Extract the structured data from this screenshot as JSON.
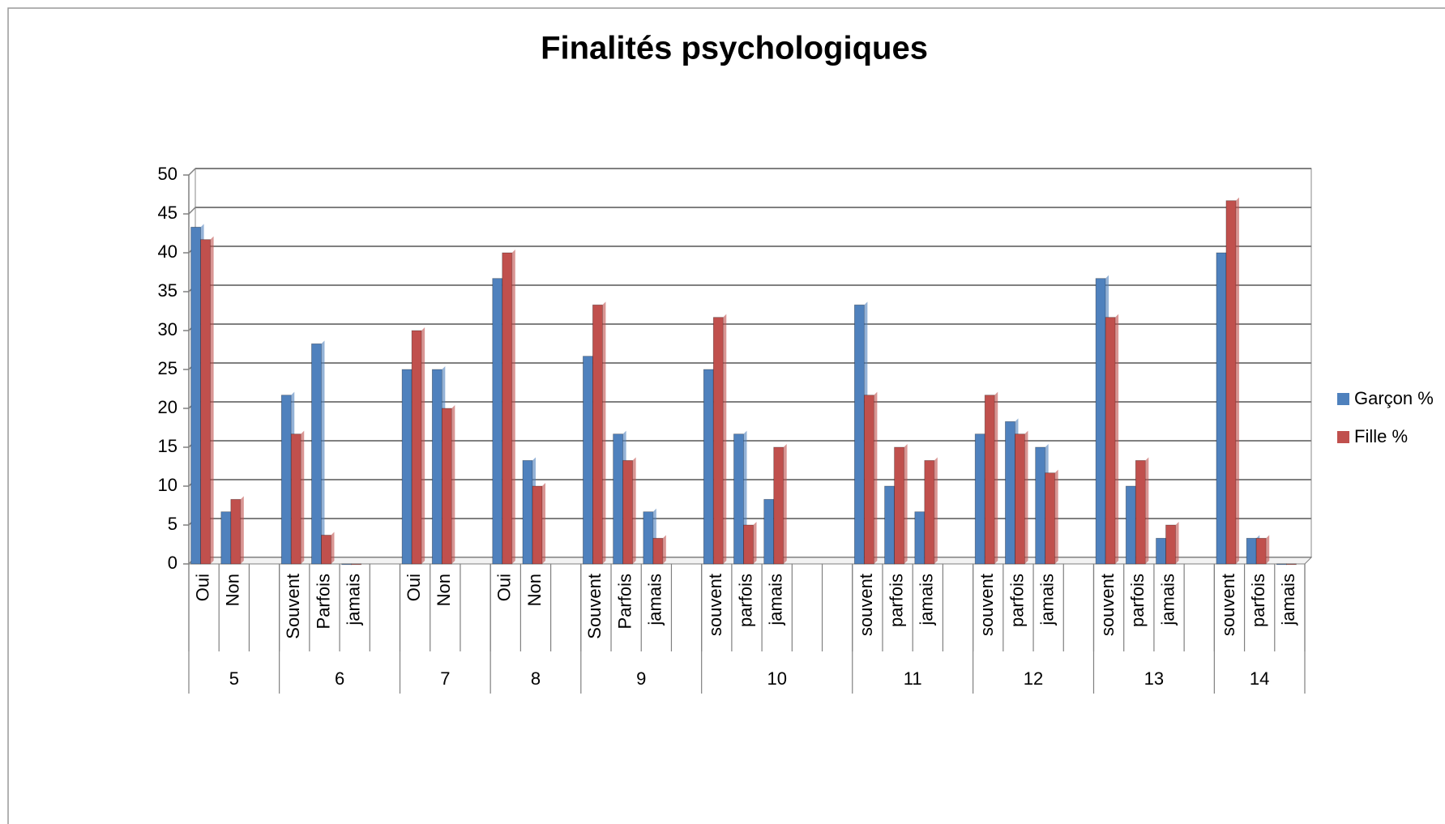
{
  "chart_data": {
    "type": "bar",
    "title": "Finalités psychologiques",
    "groups": [
      {
        "label": "5",
        "categories": [
          "Oui",
          "Non",
          null
        ]
      },
      {
        "label": "6",
        "categories": [
          "Souvent",
          "Parfois",
          "jamais",
          null
        ]
      },
      {
        "label": "7",
        "categories": [
          "Oui",
          "Non",
          null
        ]
      },
      {
        "label": "8",
        "categories": [
          "Oui",
          "Non",
          null
        ]
      },
      {
        "label": "9",
        "categories": [
          "Souvent",
          "Parfois",
          "jamais",
          null
        ]
      },
      {
        "label": "10",
        "categories": [
          "souvent",
          "parfois",
          "jamais",
          null,
          null
        ]
      },
      {
        "label": "11",
        "categories": [
          "souvent",
          "parfois",
          "jamais",
          null
        ]
      },
      {
        "label": "12",
        "categories": [
          "souvent",
          "parfois",
          "jamais",
          null
        ]
      },
      {
        "label": "13",
        "categories": [
          "souvent",
          "parfois",
          "jamais",
          null
        ]
      },
      {
        "label": "14",
        "categories": [
          "souvent",
          "parfois",
          "jamais"
        ]
      }
    ],
    "series": [
      {
        "name": "Garçon %",
        "color": "#4f81bd",
        "values": [
          43.3,
          6.7,
          null,
          21.7,
          28.3,
          0,
          null,
          25,
          25,
          null,
          36.7,
          13.3,
          null,
          26.7,
          16.7,
          6.7,
          null,
          25,
          16.7,
          8.3,
          null,
          null,
          33.3,
          10,
          6.7,
          null,
          16.7,
          18.3,
          15,
          null,
          36.7,
          10,
          3.3,
          null,
          40,
          3.3,
          0
        ]
      },
      {
        "name": "Fille %",
        "color": "#c0504d",
        "values": [
          41.7,
          8.3,
          null,
          16.7,
          3.7,
          0,
          null,
          30,
          20,
          null,
          40,
          10,
          null,
          33.3,
          13.3,
          3.3,
          null,
          31.7,
          5,
          15,
          null,
          null,
          21.7,
          15,
          13.3,
          null,
          21.7,
          16.7,
          11.7,
          null,
          31.7,
          13.3,
          5,
          null,
          46.7,
          3.3,
          0
        ]
      }
    ],
    "ylim": [
      0,
      50
    ],
    "yticks": [
      0,
      5,
      10,
      15,
      20,
      25,
      30,
      35,
      40,
      45,
      50
    ],
    "grid": true,
    "legend": "right"
  }
}
